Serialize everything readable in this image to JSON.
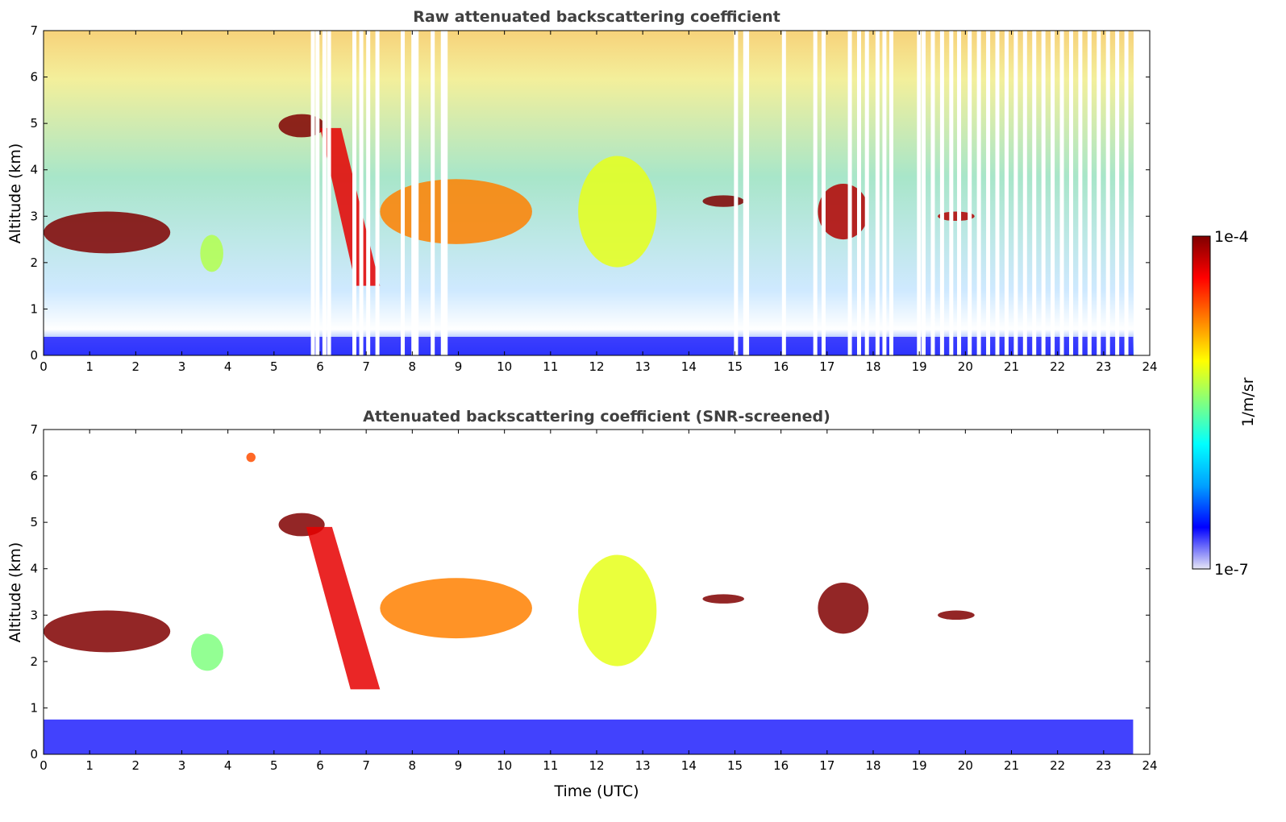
{
  "chart_data": [
    {
      "type": "heatmap",
      "title": "Raw attenuated backscattering coefficient",
      "xlabel": "",
      "ylabel": "Altitude (km)",
      "xlim": [
        0,
        24
      ],
      "ylim": [
        0,
        7
      ],
      "xticks": [
        "0",
        "1",
        "2",
        "3",
        "4",
        "5",
        "6",
        "7",
        "8",
        "9",
        "10",
        "11",
        "12",
        "13",
        "14",
        "15",
        "16",
        "17",
        "18",
        "19",
        "20",
        "21",
        "22",
        "23",
        "24"
      ],
      "yticks": [
        "0",
        "1",
        "2",
        "3",
        "4",
        "5",
        "6",
        "7"
      ],
      "data_gaps_utc": [
        5.8,
        5.9,
        6.05,
        6.15,
        6.7,
        6.85,
        7.0,
        7.2,
        7.75,
        7.98,
        8.05,
        8.4,
        8.62,
        8.68,
        14.98,
        15.18,
        15.22,
        16.02,
        16.7,
        16.88,
        17.45,
        17.65,
        17.82,
        18.05,
        18.2,
        18.35,
        18.95,
        19.05,
        19.25,
        19.45,
        19.65,
        19.82,
        20.05,
        20.25,
        20.45,
        20.65,
        20.85,
        21.05,
        21.25,
        21.45,
        21.65,
        21.85,
        22.05,
        22.25,
        22.45,
        22.65,
        22.85,
        23.05,
        23.25,
        23.45,
        23.65
      ],
      "features": [
        {
          "kind": "cloud",
          "t_start": 0.0,
          "t_end": 2.75,
          "alt_bottom_km": 2.2,
          "alt_top_km": 3.1,
          "level": 1.0
        },
        {
          "kind": "cloud",
          "t_start": 3.4,
          "t_end": 3.9,
          "alt_bottom_km": 1.8,
          "alt_top_km": 2.6,
          "level": 0.55
        },
        {
          "kind": "cloud",
          "t_start": 5.1,
          "t_end": 6.1,
          "alt_bottom_km": 4.7,
          "alt_top_km": 5.2,
          "level": 1.0
        },
        {
          "kind": "virga",
          "t_start": 6.0,
          "t_end": 7.3,
          "alt_bottom_km": 1.5,
          "alt_top_km": 4.9,
          "level": 0.9
        },
        {
          "kind": "cloud",
          "t_start": 7.3,
          "t_end": 10.6,
          "alt_bottom_km": 2.4,
          "alt_top_km": 3.8,
          "level": 0.75
        },
        {
          "kind": "cloud",
          "t_start": 11.6,
          "t_end": 13.3,
          "alt_bottom_km": 1.9,
          "alt_top_km": 4.3,
          "level": 0.6
        },
        {
          "kind": "cloud",
          "t_start": 14.3,
          "t_end": 15.2,
          "alt_bottom_km": 3.2,
          "alt_top_km": 3.45,
          "level": 1.0
        },
        {
          "kind": "cloud",
          "t_start": 16.8,
          "t_end": 17.9,
          "alt_bottom_km": 2.5,
          "alt_top_km": 3.7,
          "level": 0.95
        },
        {
          "kind": "cloud",
          "t_start": 19.4,
          "t_end": 20.2,
          "alt_bottom_km": 2.9,
          "alt_top_km": 3.1,
          "level": 0.95
        }
      ],
      "boundary_layer": {
        "alt_top_km": 0.4,
        "level": 0.1
      }
    },
    {
      "type": "heatmap",
      "title": "Attenuated backscattering coefficient (SNR-screened)",
      "xlabel": "Time (UTC)",
      "ylabel": "Altitude (km)",
      "xlim": [
        0,
        24
      ],
      "ylim": [
        0,
        7
      ],
      "xticks": [
        "0",
        "1",
        "2",
        "3",
        "4",
        "5",
        "6",
        "7",
        "8",
        "9",
        "10",
        "11",
        "12",
        "13",
        "14",
        "15",
        "16",
        "17",
        "18",
        "19",
        "20",
        "21",
        "22",
        "23",
        "24"
      ],
      "yticks": [
        "0",
        "1",
        "2",
        "3",
        "4",
        "5",
        "6",
        "7"
      ],
      "features": [
        {
          "kind": "cloud",
          "t_start": 0.0,
          "t_end": 2.75,
          "alt_bottom_km": 2.2,
          "alt_top_km": 3.1,
          "level": 1.0
        },
        {
          "kind": "cloud",
          "t_start": 3.2,
          "t_end": 3.9,
          "alt_bottom_km": 1.8,
          "alt_top_km": 2.6,
          "level": 0.5
        },
        {
          "kind": "cloud",
          "t_start": 4.4,
          "t_end": 4.6,
          "alt_bottom_km": 6.3,
          "alt_top_km": 6.5,
          "level": 0.8
        },
        {
          "kind": "cloud",
          "t_start": 5.1,
          "t_end": 6.1,
          "alt_bottom_km": 4.7,
          "alt_top_km": 5.2,
          "level": 1.0
        },
        {
          "kind": "virga",
          "t_start": 5.7,
          "t_end": 7.3,
          "alt_bottom_km": 1.4,
          "alt_top_km": 4.9,
          "level": 0.9
        },
        {
          "kind": "cloud",
          "t_start": 7.3,
          "t_end": 10.6,
          "alt_bottom_km": 2.5,
          "alt_top_km": 3.8,
          "level": 0.75
        },
        {
          "kind": "cloud",
          "t_start": 11.6,
          "t_end": 13.3,
          "alt_bottom_km": 1.9,
          "alt_top_km": 4.3,
          "level": 0.6
        },
        {
          "kind": "cloud",
          "t_start": 14.3,
          "t_end": 15.2,
          "alt_bottom_km": 3.25,
          "alt_top_km": 3.45,
          "level": 1.0
        },
        {
          "kind": "cloud",
          "t_start": 16.8,
          "t_end": 17.9,
          "alt_bottom_km": 2.6,
          "alt_top_km": 3.7,
          "level": 1.0
        },
        {
          "kind": "cloud",
          "t_start": 19.4,
          "t_end": 20.2,
          "alt_bottom_km": 2.9,
          "alt_top_km": 3.1,
          "level": 1.0
        }
      ],
      "boundary_layer": {
        "alt_top_km": 0.75,
        "level": 0.1
      }
    }
  ],
  "colorbar": {
    "label": "1/m/sr",
    "max_label": "1e-4",
    "min_label": "1e-7",
    "colormap": "jet",
    "colors": [
      "#e6e6f5",
      "#0000ff",
      "#00a0ff",
      "#00ffff",
      "#80ff80",
      "#ffff00",
      "#ff8000",
      "#ff0000",
      "#800000"
    ]
  }
}
